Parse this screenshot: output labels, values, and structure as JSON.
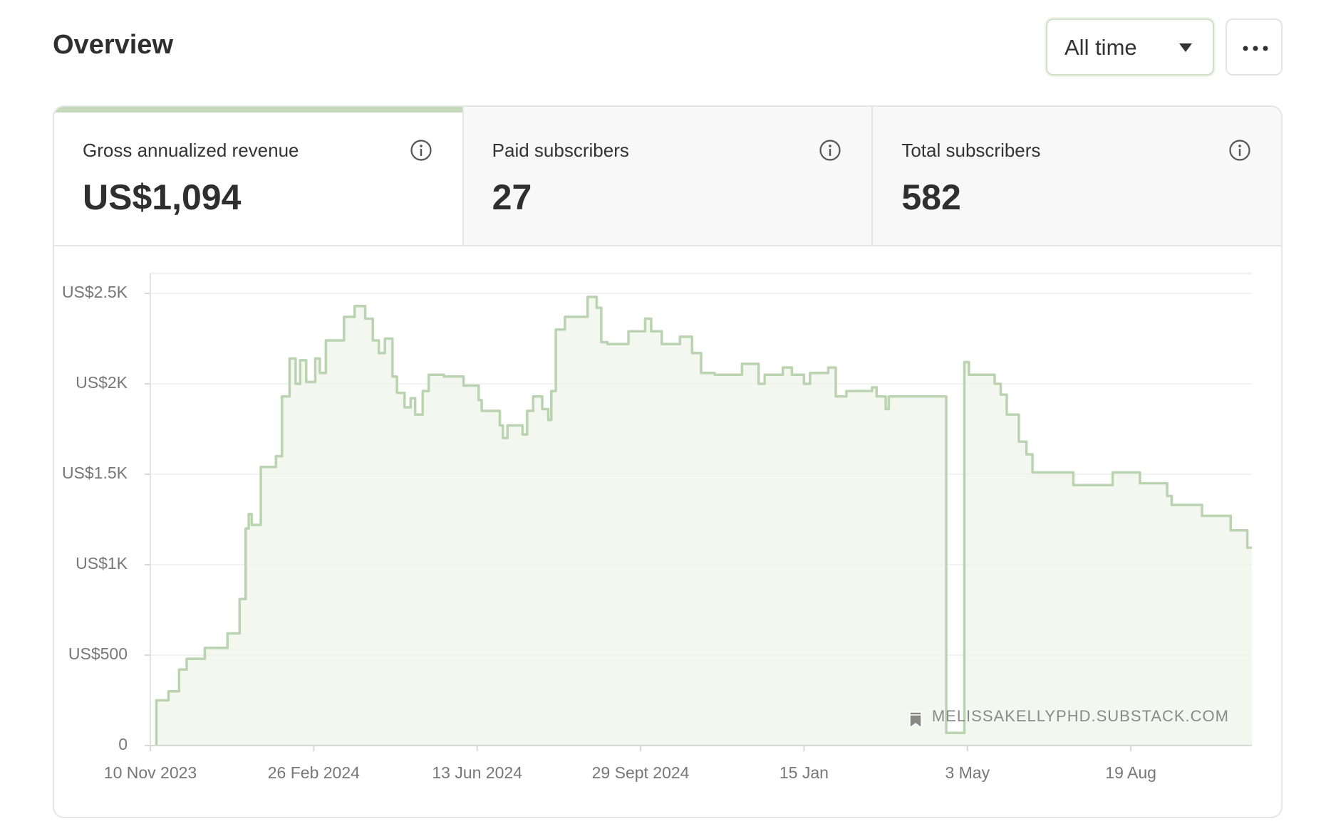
{
  "header": {
    "title": "Overview",
    "range": "All time"
  },
  "cards": [
    {
      "label": "Gross annualized revenue",
      "value": "US$1,094"
    },
    {
      "label": "Paid subscribers",
      "value": "27"
    },
    {
      "label": "Total subscribers",
      "value": "582"
    }
  ],
  "chart_data": {
    "type": "line",
    "step": true,
    "color": "#bad3b0",
    "fill": "#eef3ea",
    "grid": true,
    "watermark": "MELISSAKELLYPHD.SUBSTACK.COM",
    "xlim": [
      "2023-11-10",
      "2025-11-07"
    ],
    "xticks": [
      {
        "value": "2023-11-10",
        "label": "10 Nov 2023"
      },
      {
        "value": "2024-02-26",
        "label": "26 Feb 2024"
      },
      {
        "value": "2024-06-13",
        "label": "13 Jun 2024"
      },
      {
        "value": "2024-09-29",
        "label": "29 Sept 2024"
      },
      {
        "value": "2025-01-15",
        "label": "15 Jan"
      },
      {
        "value": "2025-05-03",
        "label": "3 May"
      },
      {
        "value": "2025-08-19",
        "label": "19 Aug"
      }
    ],
    "ylim": [
      0,
      2610
    ],
    "yticks": [
      0,
      {
        "value": 500,
        "label": "US$500"
      },
      {
        "value": 1000,
        "label": "US$1K"
      },
      {
        "value": 1500,
        "label": "US$1.5K"
      },
      {
        "value": 2000,
        "label": "US$2K"
      },
      {
        "value": 2500,
        "label": "US$2.5K"
      }
    ],
    "x": [
      "2023-11-14",
      "2023-11-22",
      "2023-11-29",
      "2023-12-04",
      "2023-12-16",
      "2023-12-31",
      "2024-01-08",
      "2024-01-12",
      "2024-01-14",
      "2024-01-16",
      "2024-01-22",
      "2024-02-01",
      "2024-02-05",
      "2024-02-10",
      "2024-02-14",
      "2024-02-17",
      "2024-02-21",
      "2024-02-27",
      "2024-03-01",
      "2024-03-05",
      "2024-03-17",
      "2024-03-24",
      "2024-03-31",
      "2024-04-05",
      "2024-04-09",
      "2024-04-13",
      "2024-04-18",
      "2024-04-21",
      "2024-04-26",
      "2024-04-30",
      "2024-05-03",
      "2024-05-08",
      "2024-05-12",
      "2024-05-22",
      "2024-06-04",
      "2024-06-14",
      "2024-06-16",
      "2024-06-28",
      "2024-06-30",
      "2024-07-03",
      "2024-07-13",
      "2024-07-16",
      "2024-07-20",
      "2024-07-26",
      "2024-07-30",
      "2024-08-01",
      "2024-08-04",
      "2024-08-10",
      "2024-08-25",
      "2024-08-31",
      "2024-09-03",
      "2024-09-07",
      "2024-09-21",
      "2024-10-02",
      "2024-10-06",
      "2024-10-13",
      "2024-10-25",
      "2024-11-02",
      "2024-11-08",
      "2024-11-17",
      "2024-12-05",
      "2024-12-16",
      "2024-12-20",
      "2025-01-01",
      "2025-01-07",
      "2025-01-15",
      "2025-01-19",
      "2025-01-31",
      "2025-02-05",
      "2025-02-12",
      "2025-03-01",
      "2025-03-04",
      "2025-03-10",
      "2025-03-12",
      "2025-04-19",
      "2025-05-01",
      "2025-05-04",
      "2025-05-21",
      "2025-05-25",
      "2025-05-29",
      "2025-06-06",
      "2025-06-11",
      "2025-06-15",
      "2025-06-26",
      "2025-07-12",
      "2025-08-07",
      "2025-08-25",
      "2025-09-12",
      "2025-09-15",
      "2025-10-05",
      "2025-10-24",
      "2025-11-04"
    ],
    "values": [
      250,
      300,
      420,
      480,
      540,
      620,
      810,
      1200,
      1280,
      1220,
      1540,
      1600,
      1930,
      2140,
      2000,
      2130,
      2010,
      2140,
      2060,
      2240,
      2370,
      2430,
      2360,
      2240,
      2170,
      2250,
      2040,
      1950,
      1870,
      1920,
      1830,
      1960,
      2050,
      2040,
      1990,
      1910,
      1850,
      1770,
      1700,
      1770,
      1720,
      1850,
      1930,
      1860,
      1800,
      1960,
      2300,
      2370,
      2480,
      2420,
      2230,
      2220,
      2290,
      2360,
      2290,
      2220,
      2260,
      2170,
      2060,
      2050,
      2110,
      2000,
      2050,
      2090,
      2050,
      2000,
      2060,
      2090,
      1930,
      1960,
      1980,
      1930,
      1860,
      1930,
      70,
      2120,
      2050,
      2000,
      1940,
      1830,
      1680,
      1610,
      1510,
      1510,
      1440,
      1510,
      1450,
      1380,
      1330,
      1270,
      1190,
      1094
    ]
  }
}
